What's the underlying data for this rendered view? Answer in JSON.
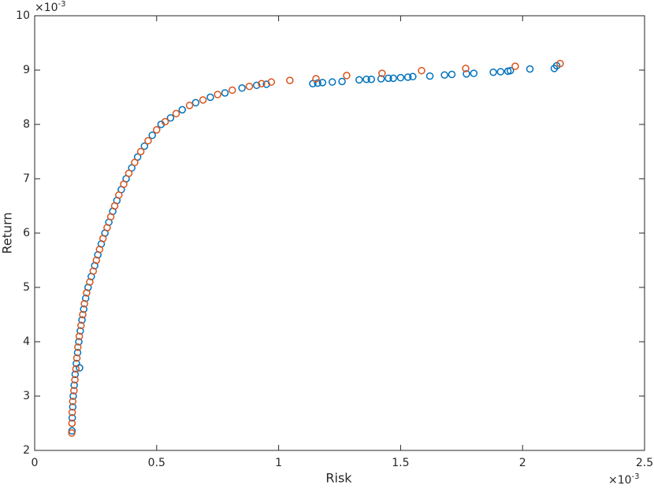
{
  "chart_data": {
    "type": "scatter",
    "xlabel": "Risk",
    "ylabel": "Return",
    "x_exponent": {
      "base": "×10",
      "power": "-3"
    },
    "y_exponent": {
      "base": "×10",
      "power": "-3"
    },
    "xlim": [
      0,
      2.5
    ],
    "ylim": [
      2,
      10
    ],
    "xticks": [
      0,
      0.5,
      1,
      1.5,
      2,
      2.5
    ],
    "yticks": [
      2,
      3,
      4,
      5,
      6,
      7,
      8,
      9,
      10
    ],
    "grid": false,
    "series": [
      {
        "color": "#0072BD",
        "x": [
          0.153,
          0.154,
          0.156,
          0.158,
          0.162,
          0.166,
          0.171,
          0.176,
          0.184,
          0.181,
          0.187,
          0.194,
          0.201,
          0.209,
          0.219,
          0.232,
          0.246,
          0.259,
          0.273,
          0.288,
          0.304,
          0.32,
          0.337,
          0.355,
          0.375,
          0.398,
          0.422,
          0.45,
          0.482,
          0.518,
          0.557,
          0.605,
          0.66,
          0.72,
          0.78,
          0.85,
          0.91,
          0.95,
          1.14,
          1.16,
          1.18,
          1.22,
          1.26,
          1.33,
          1.36,
          1.38,
          1.42,
          1.45,
          1.47,
          1.5,
          1.53,
          1.55,
          1.62,
          1.68,
          1.71,
          1.77,
          1.8,
          1.88,
          1.91,
          1.94,
          1.95,
          2.03,
          2.13,
          2.14
        ],
        "values": [
          2.36,
          2.6,
          2.8,
          3.0,
          3.2,
          3.4,
          3.6,
          3.8,
          3.52,
          4.0,
          4.2,
          4.4,
          4.6,
          4.8,
          5.0,
          5.2,
          5.4,
          5.6,
          5.8,
          6.0,
          6.2,
          6.4,
          6.6,
          6.8,
          7.0,
          7.2,
          7.4,
          7.6,
          7.8,
          8.0,
          8.12,
          8.27,
          8.4,
          8.5,
          8.58,
          8.67,
          8.72,
          8.74,
          8.75,
          8.76,
          8.77,
          8.78,
          8.79,
          8.82,
          8.83,
          8.83,
          8.84,
          8.85,
          8.85,
          8.86,
          8.87,
          8.88,
          8.89,
          8.91,
          8.92,
          8.93,
          8.94,
          8.96,
          8.97,
          8.98,
          8.99,
          9.02,
          9.03,
          9.08
        ]
      },
      {
        "color": "#D95319",
        "x": [
          0.152,
          0.153,
          0.154,
          0.156,
          0.161,
          0.165,
          0.169,
          0.173,
          0.177,
          0.183,
          0.19,
          0.197,
          0.204,
          0.213,
          0.226,
          0.24,
          0.253,
          0.266,
          0.28,
          0.297,
          0.312,
          0.328,
          0.345,
          0.365,
          0.386,
          0.41,
          0.435,
          0.465,
          0.5,
          0.535,
          0.58,
          0.635,
          0.69,
          0.75,
          0.81,
          0.88,
          0.93,
          0.97,
          1.046,
          1.153,
          1.279,
          1.424,
          1.586,
          1.767,
          1.97,
          2.154
        ],
        "values": [
          2.32,
          2.5,
          2.7,
          2.9,
          3.1,
          3.3,
          3.5,
          3.7,
          3.9,
          4.1,
          4.3,
          4.5,
          4.7,
          4.9,
          5.1,
          5.3,
          5.5,
          5.7,
          5.9,
          6.1,
          6.3,
          6.5,
          6.7,
          6.9,
          7.1,
          7.3,
          7.5,
          7.7,
          7.9,
          8.05,
          8.2,
          8.35,
          8.45,
          8.55,
          8.63,
          8.7,
          8.75,
          8.78,
          8.81,
          8.84,
          8.9,
          8.94,
          8.99,
          9.03,
          9.07,
          9.12
        ]
      }
    ]
  }
}
